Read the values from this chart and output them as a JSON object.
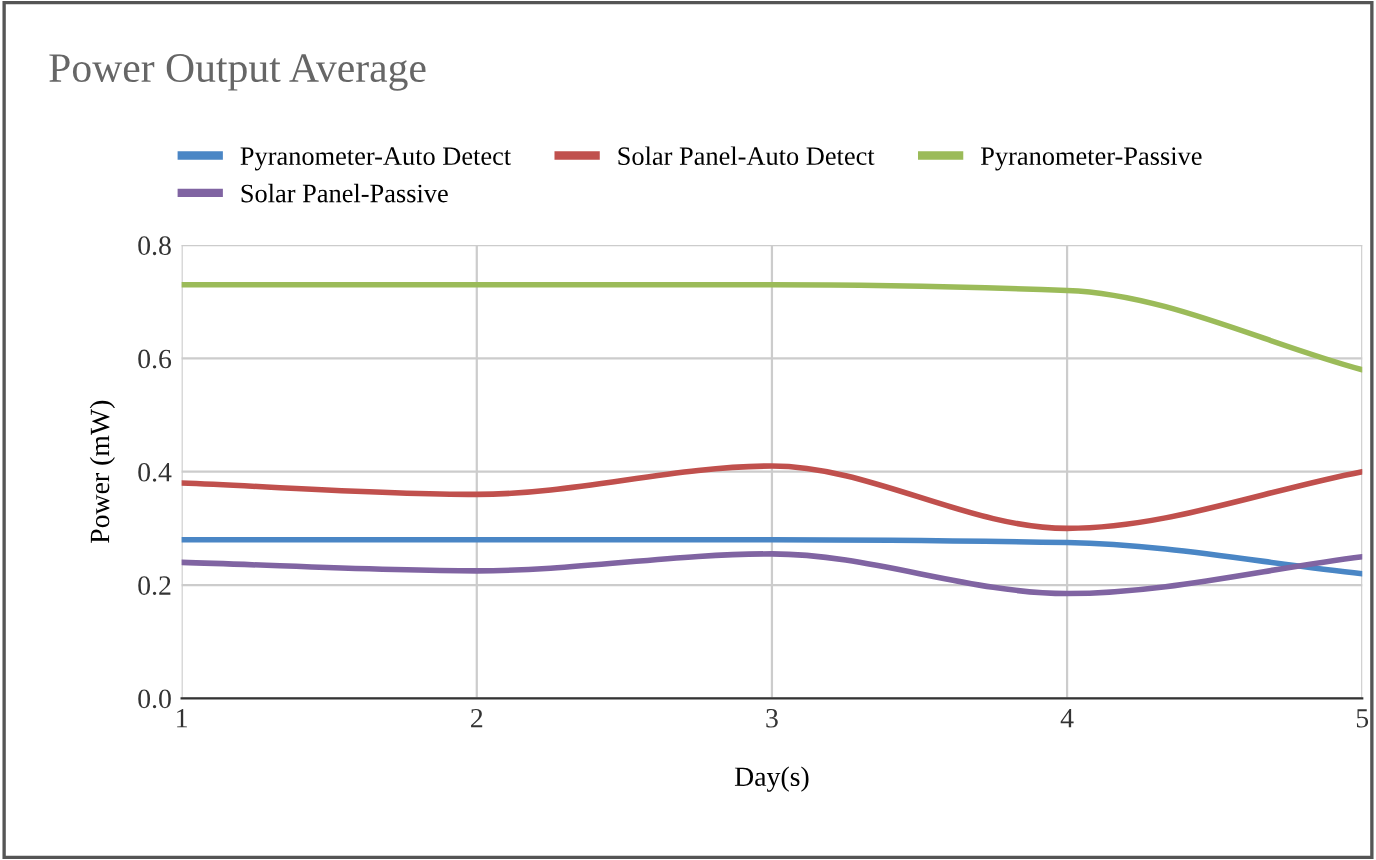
{
  "chart_data": {
    "type": "line",
    "title": "Power Output Average",
    "xlabel": "Day(s)",
    "ylabel": "Power (mW)",
    "x": [
      1,
      2,
      3,
      4,
      5
    ],
    "xlim": [
      1,
      5
    ],
    "xticks": [
      1,
      2,
      3,
      4,
      5
    ],
    "ylim": [
      0,
      0.8
    ],
    "yticks": [
      {
        "value": 0,
        "label": "0.0"
      },
      0.2,
      0.4,
      0.6,
      0.8
    ],
    "grid": true,
    "legend": "top",
    "series": [
      {
        "name": "Pyranometer-Auto Detect",
        "color": "#4a86c5",
        "values": [
          0.28,
          0.28,
          0.28,
          0.275,
          0.22
        ]
      },
      {
        "name": "Solar Panel-Auto Detect",
        "color": "#c0504d",
        "values": [
          0.38,
          0.36,
          0.41,
          0.3,
          0.4
        ]
      },
      {
        "name": "Pyranometer-Passive",
        "color": "#9bbb59",
        "values": [
          0.73,
          0.73,
          0.73,
          0.72,
          0.58
        ]
      },
      {
        "name": "Solar Panel-Passive",
        "color": "#8064a2",
        "values": [
          0.24,
          0.225,
          0.255,
          0.185,
          0.25
        ]
      }
    ]
  }
}
